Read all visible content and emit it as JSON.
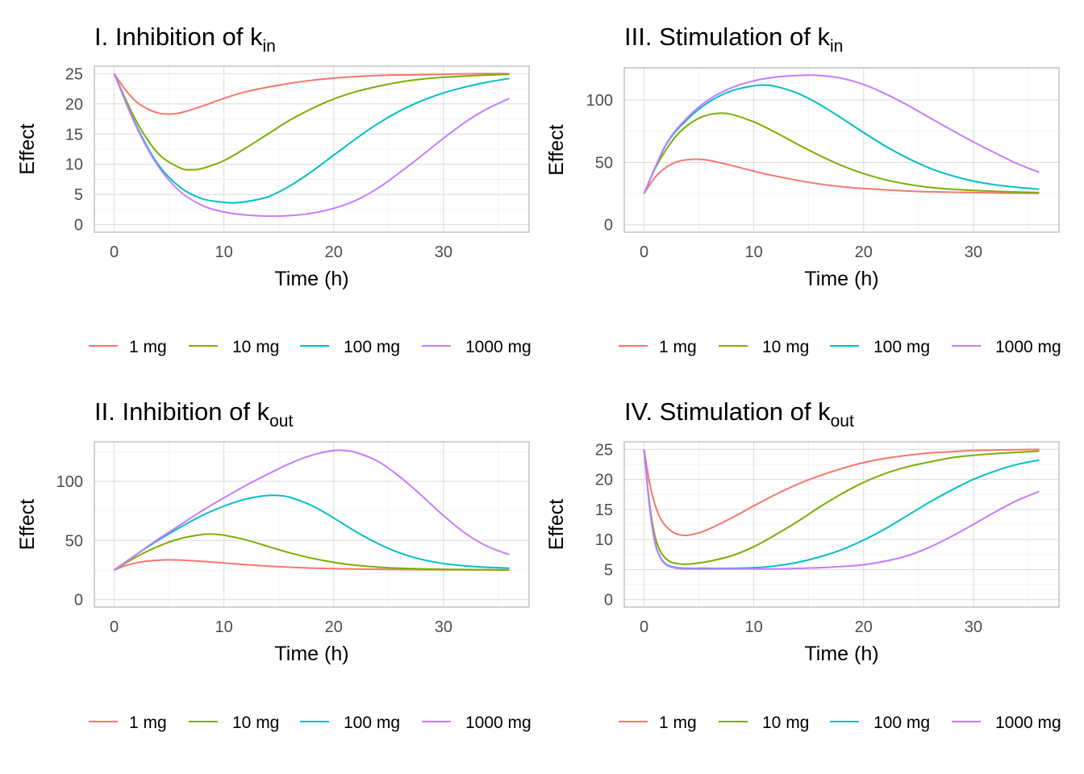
{
  "legend_colors": [
    "#F8766D",
    "#7CAE00",
    "#00BFC4",
    "#C77CFF"
  ],
  "chart_data": [
    {
      "type": "line",
      "title": "I. Inhibition of k",
      "title_subscript": "in",
      "xlabel": "Time (h)",
      "ylabel": "Effect",
      "xlim": [
        0,
        36
      ],
      "ylim": [
        0,
        25
      ],
      "xticks": [
        0,
        10,
        20,
        30
      ],
      "yticks": [
        0,
        5,
        10,
        15,
        20,
        25
      ],
      "grid": true,
      "legend": "bottom",
      "series": [
        {
          "name": "1 mg",
          "x": [
            0,
            1,
            2,
            3,
            4,
            5,
            6,
            8,
            10,
            12,
            15,
            18,
            21,
            24,
            27,
            30,
            33,
            36
          ],
          "y": [
            25,
            22.4,
            20.4,
            19.2,
            18.5,
            18.3,
            18.5,
            19.6,
            20.9,
            22.0,
            23.1,
            23.9,
            24.4,
            24.7,
            24.8,
            24.9,
            25,
            25
          ]
        },
        {
          "name": "10 mg",
          "x": [
            0,
            2,
            4,
            6,
            7,
            8,
            10,
            12,
            14,
            16,
            18,
            20,
            22,
            24,
            26,
            28,
            30,
            33,
            36
          ],
          "y": [
            25,
            17.2,
            11.8,
            9.4,
            9.1,
            9.3,
            10.6,
            12.7,
            15.0,
            17.3,
            19.2,
            20.8,
            22.0,
            22.9,
            23.6,
            24.1,
            24.4,
            24.7,
            24.9
          ]
        },
        {
          "name": "100 mg",
          "x": [
            0,
            2,
            4,
            6,
            8,
            10,
            11,
            12,
            14,
            16,
            18,
            20,
            22,
            24,
            26,
            28,
            30,
            32,
            34,
            36
          ],
          "y": [
            25,
            16.5,
            10.0,
            6.2,
            4.3,
            3.7,
            3.6,
            3.8,
            4.6,
            6.4,
            8.8,
            11.5,
            14.2,
            16.7,
            18.8,
            20.5,
            21.8,
            22.8,
            23.6,
            24.2
          ]
        },
        {
          "name": "1000 mg",
          "x": [
            0,
            2,
            4,
            6,
            8,
            10,
            12,
            14,
            16,
            18,
            20,
            22,
            24,
            26,
            28,
            30,
            32,
            34,
            36
          ],
          "y": [
            25,
            16.3,
            9.7,
            5.5,
            3.2,
            2.1,
            1.6,
            1.4,
            1.5,
            1.9,
            2.7,
            4.0,
            6.0,
            8.6,
            11.4,
            14.3,
            17.0,
            19.2,
            20.9
          ]
        }
      ]
    },
    {
      "type": "line",
      "title": "III. Stimulation of k",
      "title_subscript": "in",
      "xlabel": "Time (h)",
      "ylabel": "Effect",
      "xlim": [
        0,
        36
      ],
      "ylim": [
        0,
        120
      ],
      "xticks": [
        0,
        10,
        20,
        30
      ],
      "yticks": [
        0,
        50,
        100
      ],
      "grid": true,
      "legend": "bottom",
      "series": [
        {
          "name": "1 mg",
          "x": [
            0,
            1,
            2,
            3,
            4,
            5,
            6,
            8,
            10,
            12,
            15,
            18,
            21,
            24,
            27,
            30,
            33,
            36
          ],
          "y": [
            25,
            38,
            46,
            50.5,
            52.2,
            52.5,
            51.5,
            47.5,
            43,
            39,
            34,
            30.5,
            28.5,
            27,
            26.3,
            25.8,
            25.4,
            25.2
          ]
        },
        {
          "name": "10 mg",
          "x": [
            0,
            1,
            2,
            3,
            4,
            5,
            6,
            7,
            8,
            10,
            12,
            14,
            16,
            18,
            20,
            22,
            24,
            26,
            28,
            30,
            33,
            36
          ],
          "y": [
            25,
            45,
            60,
            72,
            80,
            85.5,
            88.5,
            89.5,
            88.5,
            82.5,
            74,
            64.5,
            55.5,
            47.5,
            41,
            36,
            32.5,
            30,
            28.5,
            27.5,
            26.5,
            25.8
          ]
        },
        {
          "name": "100 mg",
          "x": [
            0,
            2,
            4,
            6,
            8,
            10,
            11,
            12,
            14,
            16,
            18,
            20,
            22,
            24,
            26,
            28,
            30,
            32,
            34,
            36
          ],
          "y": [
            25,
            64,
            85,
            99,
            107.5,
            111.5,
            112,
            111,
            105.5,
            96.5,
            85.5,
            74,
            63,
            53.5,
            45.5,
            39.5,
            35,
            32,
            30,
            28.5
          ]
        },
        {
          "name": "1000 mg",
          "x": [
            0,
            2,
            4,
            6,
            8,
            10,
            12,
            14,
            15,
            16,
            18,
            20,
            22,
            24,
            26,
            28,
            30,
            32,
            34,
            36
          ],
          "y": [
            25,
            64.5,
            86.5,
            101,
            110,
            115.5,
            118.5,
            119.8,
            120,
            119.8,
            117.5,
            112.5,
            105,
            96,
            86,
            76,
            66.5,
            57.5,
            49,
            42
          ]
        }
      ]
    },
    {
      "type": "line",
      "title": "II. Inhibition of k",
      "title_subscript": "out",
      "xlabel": "Time (h)",
      "ylabel": "Effect",
      "xlim": [
        0,
        36
      ],
      "ylim": [
        0,
        127
      ],
      "xticks": [
        0,
        10,
        20,
        30
      ],
      "yticks": [
        0,
        50,
        100
      ],
      "grid": true,
      "legend": "bottom",
      "series": [
        {
          "name": "1 mg",
          "x": [
            0,
            1,
            2,
            3,
            4,
            5,
            6,
            8,
            10,
            12,
            15,
            18,
            21,
            24,
            27,
            30,
            33,
            36
          ],
          "y": [
            25,
            28.5,
            31,
            32.5,
            33.3,
            33.6,
            33.4,
            32.3,
            31,
            29.5,
            27.8,
            26.6,
            26,
            25.6,
            25.3,
            25.2,
            25.1,
            25
          ]
        },
        {
          "name": "10 mg",
          "x": [
            0,
            2,
            4,
            6,
            8,
            9,
            10,
            12,
            14,
            16,
            18,
            20,
            22,
            24,
            26,
            28,
            30,
            33,
            36
          ],
          "y": [
            25,
            36,
            45,
            51.5,
            55,
            55.3,
            54.5,
            50.5,
            45,
            39.5,
            35,
            31.5,
            29,
            27.5,
            26.5,
            26,
            25.6,
            25.3,
            25.1
          ]
        },
        {
          "name": "100 mg",
          "x": [
            0,
            2,
            4,
            6,
            8,
            10,
            12,
            14,
            15,
            16,
            18,
            20,
            22,
            24,
            26,
            28,
            30,
            32,
            34,
            36
          ],
          "y": [
            25,
            38,
            50,
            61,
            71,
            79,
            85,
            88,
            88,
            86.5,
            79.5,
            69,
            57.5,
            47.5,
            39.5,
            34,
            30.5,
            28.5,
            27.3,
            26.6
          ]
        },
        {
          "name": "1000 mg",
          "x": [
            0,
            2,
            4,
            6,
            8,
            10,
            12,
            14,
            16,
            18,
            20,
            21,
            22,
            24,
            26,
            28,
            30,
            32,
            34,
            36
          ],
          "y": [
            25,
            38,
            51,
            63,
            75,
            86,
            96.5,
            106,
            115,
            122,
            126,
            126,
            124.5,
            117,
            104,
            88,
            71,
            56,
            45,
            38
          ]
        }
      ]
    },
    {
      "type": "line",
      "title": "IV. Stimulation of k",
      "title_subscript": "out",
      "xlabel": "Time (h)",
      "ylabel": "Effect",
      "xlim": [
        0,
        36
      ],
      "ylim": [
        0,
        25
      ],
      "xticks": [
        0,
        10,
        20,
        30
      ],
      "yticks": [
        0,
        5,
        10,
        15,
        20,
        25
      ],
      "grid": true,
      "legend": "bottom",
      "series": [
        {
          "name": "1 mg",
          "x": [
            0,
            0.5,
            1,
            1.5,
            2,
            2.5,
            3,
            3.5,
            4,
            5,
            6,
            8,
            10,
            12,
            14,
            16,
            18,
            20,
            22,
            24,
            26,
            28,
            30,
            33,
            36
          ],
          "y": [
            25,
            19.5,
            15.8,
            13.5,
            12.2,
            11.4,
            10.9,
            10.7,
            10.7,
            11.1,
            11.8,
            13.6,
            15.6,
            17.5,
            19.2,
            20.6,
            21.8,
            22.8,
            23.5,
            24,
            24.4,
            24.6,
            24.8,
            24.9,
            25
          ]
        },
        {
          "name": "10 mg",
          "x": [
            0,
            0.5,
            1,
            1.5,
            2,
            2.5,
            3,
            3.5,
            4,
            5,
            6,
            8,
            10,
            12,
            14,
            16,
            18,
            20,
            22,
            24,
            26,
            28,
            30,
            33,
            36
          ],
          "y": [
            25,
            16,
            10.5,
            8,
            6.8,
            6.2,
            6,
            5.9,
            5.9,
            6.1,
            6.4,
            7.3,
            8.8,
            10.8,
            13,
            15.4,
            17.6,
            19.5,
            21,
            22.1,
            22.9,
            23.6,
            24,
            24.4,
            24.7
          ]
        },
        {
          "name": "100 mg",
          "x": [
            0,
            0.5,
            1,
            1.5,
            2,
            2.5,
            3,
            4,
            5,
            6,
            8,
            10,
            12,
            14,
            16,
            18,
            20,
            22,
            24,
            26,
            28,
            30,
            32,
            34,
            36
          ],
          "y": [
            25,
            15.5,
            9.5,
            7,
            5.9,
            5.5,
            5.3,
            5.2,
            5.2,
            5.2,
            5.2,
            5.3,
            5.6,
            6.2,
            7.1,
            8.3,
            9.9,
            11.8,
            14,
            16.2,
            18.2,
            20,
            21.4,
            22.5,
            23.2
          ]
        },
        {
          "name": "1000 mg",
          "x": [
            0,
            0.5,
            1,
            1.5,
            2,
            2.5,
            3,
            4,
            6,
            8,
            10,
            12,
            14,
            16,
            18,
            20,
            22,
            24,
            26,
            28,
            30,
            32,
            34,
            36
          ],
          "y": [
            25,
            15.5,
            9.4,
            6.9,
            5.8,
            5.4,
            5.2,
            5.1,
            5.1,
            5.1,
            5.1,
            5.1,
            5.2,
            5.3,
            5.5,
            5.8,
            6.4,
            7.3,
            8.7,
            10.5,
            12.5,
            14.6,
            16.5,
            18
          ]
        }
      ]
    }
  ]
}
